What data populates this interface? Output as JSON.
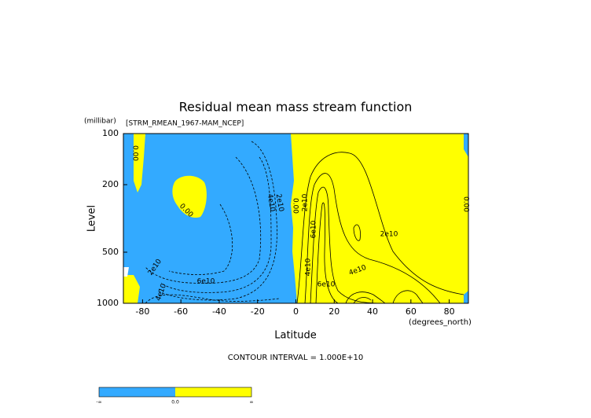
{
  "chart_data": {
    "type": "contour",
    "title": "Residual mean mass stream function",
    "subtitle": "[STRM_RMEAN_1967-MAM_NCEP]",
    "x_label": "Latitude",
    "x_units": "(degrees_north)",
    "y_label": "Level",
    "y_units": "(millibar)",
    "xlim": [
      -90,
      90
    ],
    "xticks": [
      -80,
      -60,
      -40,
      -20,
      0,
      20,
      40,
      60,
      80
    ],
    "ylim": [
      1000,
      100
    ],
    "yticks": [
      100,
      200,
      500,
      1000
    ],
    "y_log": true,
    "contour_interval_label": "CONTOUR INTERVAL = 1.000E+10",
    "contour_labels": [
      "0.00",
      "0.00",
      "4e10",
      "2e10",
      "0.00",
      "2e10",
      "6e10",
      "4e10",
      "2e10",
      "4e10",
      "6e10",
      "6e10",
      "2e10",
      "4e10",
      "0.00"
    ],
    "colors": {
      "negative": "#33aaff",
      "positive": "#ffff00"
    },
    "colorbar_labels": [
      "-∞",
      "0.0",
      "∞"
    ]
  }
}
